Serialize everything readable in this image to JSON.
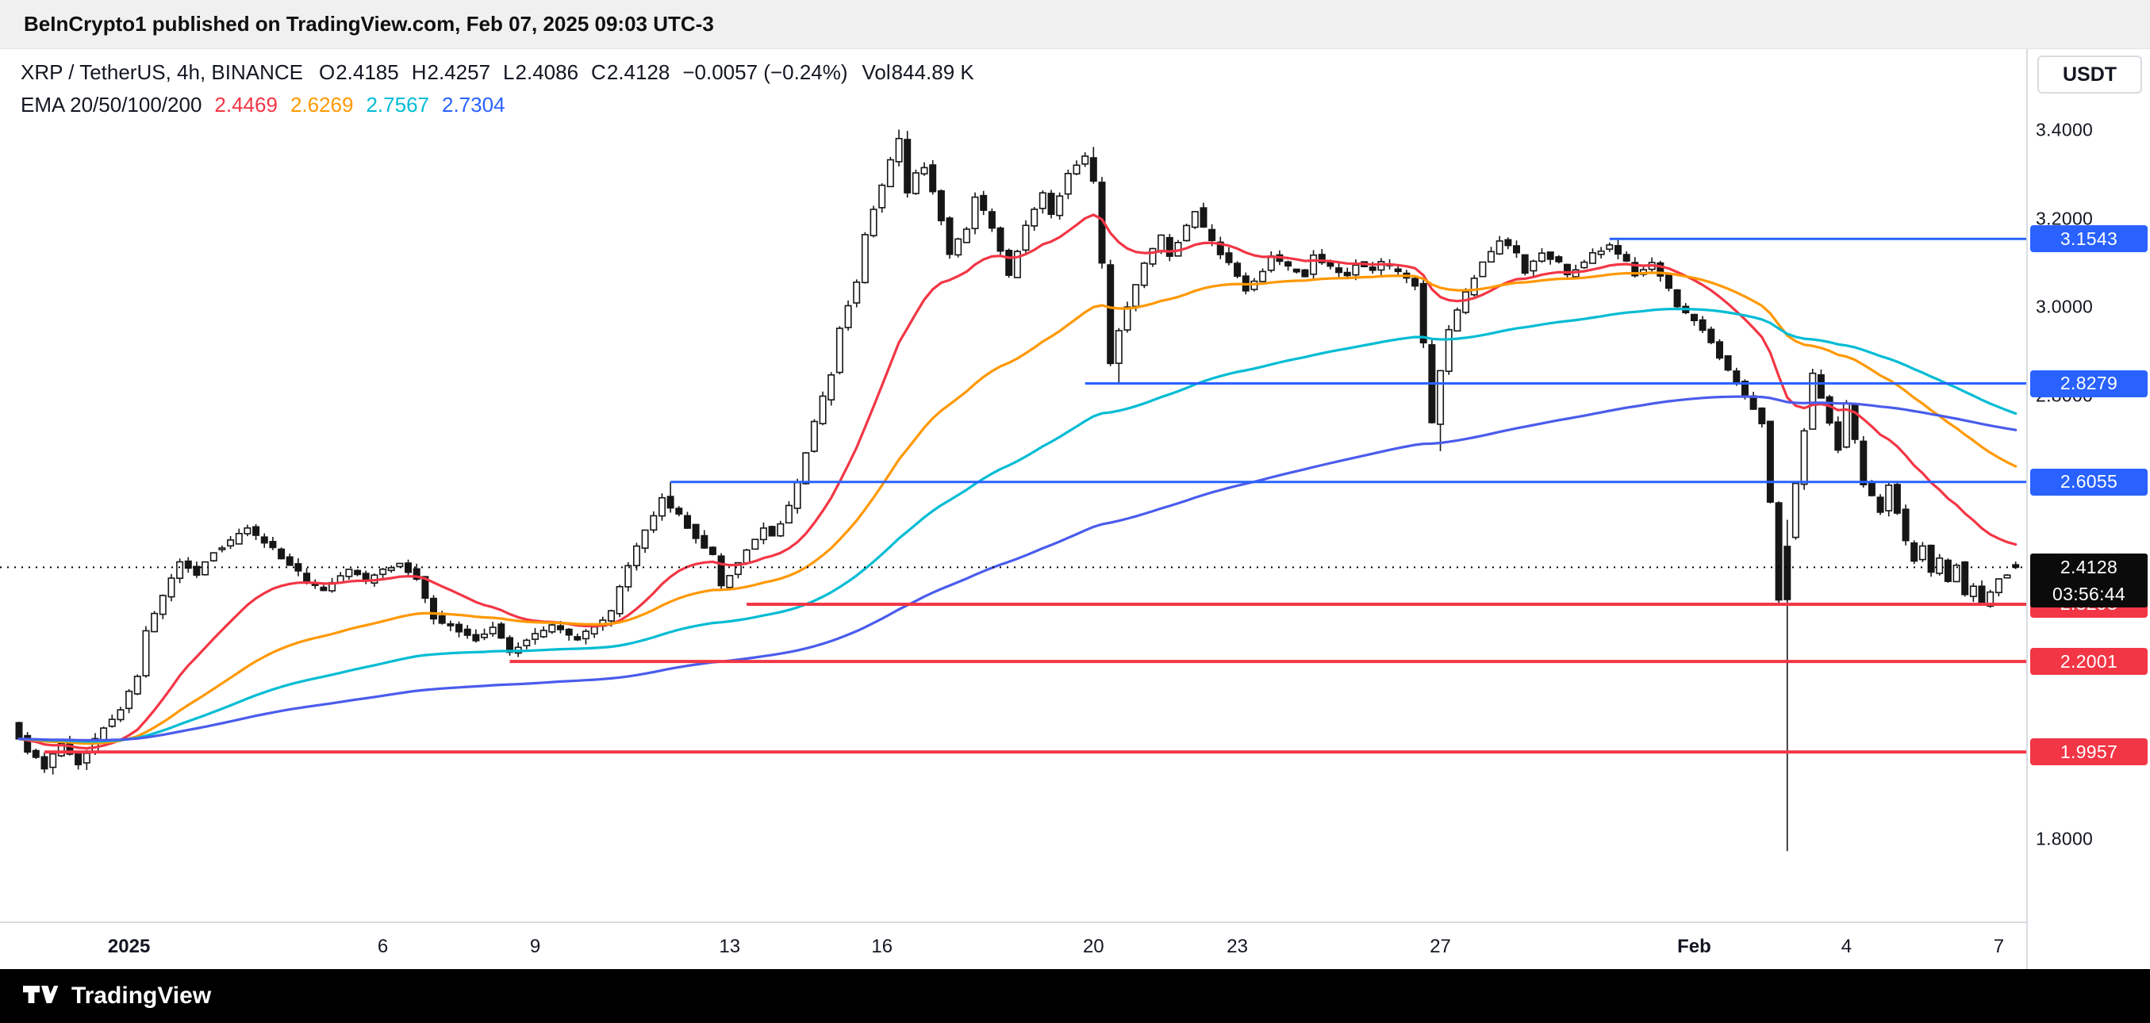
{
  "publish_bar": {
    "text": "BeInCrypto1 published on TradingView.com, Feb 07, 2025 09:03 UTC-3"
  },
  "legend": {
    "symbol": "XRP / TetherUS, 4h, BINANCE",
    "ohlc": [
      {
        "label": "O",
        "value": "2.4185"
      },
      {
        "label": "H",
        "value": "2.4257"
      },
      {
        "label": "L",
        "value": "2.4086"
      },
      {
        "label": "C",
        "value": "2.4128"
      }
    ],
    "change": "−0.0057 (−0.24%)",
    "volume_label": "Vol",
    "volume": "844.89 K",
    "ema_label": "EMA 20/50/100/200",
    "ema_values": [
      {
        "value": "2.4469",
        "color": "#f23645"
      },
      {
        "value": "2.6269",
        "color": "#ff9800"
      },
      {
        "value": "2.7567",
        "color": "#00bcd4"
      },
      {
        "value": "2.7304",
        "color": "#2962ff"
      }
    ]
  },
  "price_axis": {
    "currency_button": "USDT"
  },
  "footer": {
    "brand": "TradingView"
  },
  "chart_data": {
    "type": "candlestick",
    "symbol": "XRP/USDT",
    "interval": "4h",
    "exchange": "BINANCE",
    "ylim": [
      1.75,
      3.47
    ],
    "candle_count": 237,
    "up_color": "#ffffff",
    "down_color": "#161616",
    "border_color": "#161616",
    "y_axis_labels": [
      {
        "price": 3.4,
        "label": "3.4000"
      },
      {
        "price": 3.2,
        "label": "3.2000"
      },
      {
        "price": 3.0,
        "label": "3.0000"
      },
      {
        "price": 2.8,
        "label": "2.8000"
      },
      {
        "price": 1.8,
        "label": "1.8000"
      }
    ],
    "time_ticks": [
      {
        "t": 13,
        "label": "2025",
        "bold": true
      },
      {
        "t": 43,
        "label": "6",
        "bold": false
      },
      {
        "t": 61,
        "label": "9",
        "bold": false
      },
      {
        "t": 84,
        "label": "13",
        "bold": false
      },
      {
        "t": 102,
        "label": "16",
        "bold": false
      },
      {
        "t": 127,
        "label": "20",
        "bold": false
      },
      {
        "t": 144,
        "label": "23",
        "bold": false
      },
      {
        "t": 168,
        "label": "27",
        "bold": false
      },
      {
        "t": 198,
        "label": "Feb",
        "bold": true
      },
      {
        "t": 216,
        "label": "4",
        "bold": false
      },
      {
        "t": 234,
        "label": "7",
        "bold": false
      }
    ],
    "levels": [
      {
        "price": 3.1543,
        "label": "3.1543",
        "color": "#2962ff",
        "start_t": 188,
        "width": 3
      },
      {
        "price": 2.8279,
        "label": "2.8279",
        "color": "#2962ff",
        "start_t": 126,
        "width": 3
      },
      {
        "price": 2.6055,
        "label": "2.6055",
        "color": "#2962ff",
        "start_t": 77,
        "width": 3
      },
      {
        "price": 2.3293,
        "label": "2.3293",
        "color": "#f23645",
        "start_t": 86,
        "width": 4
      },
      {
        "price": 2.2001,
        "label": "2.2001",
        "color": "#f23645",
        "start_t": 58,
        "width": 4
      },
      {
        "price": 1.9957,
        "label": "1.9957",
        "color": "#f23645",
        "start_t": 3,
        "width": 4
      }
    ],
    "current_price": {
      "price": 2.4128,
      "label": "2.4128",
      "countdown": "03:56:44"
    },
    "emas": [
      {
        "period": 20,
        "color": "#f23645"
      },
      {
        "period": 50,
        "color": "#ff9800"
      },
      {
        "period": 100,
        "color": "#00bcd4"
      },
      {
        "period": 200,
        "color": "#4a5cec"
      }
    ],
    "path_anchors": [
      [
        0,
        2.06
      ],
      [
        2,
        2.0
      ],
      [
        4,
        1.96
      ],
      [
        6,
        2.02
      ],
      [
        8,
        1.97
      ],
      [
        11,
        2.05
      ],
      [
        13,
        2.09
      ],
      [
        15,
        2.17
      ],
      [
        16,
        2.27
      ],
      [
        18,
        2.35
      ],
      [
        20,
        2.43
      ],
      [
        22,
        2.4
      ],
      [
        24,
        2.45
      ],
      [
        26,
        2.47
      ],
      [
        28,
        2.5
      ],
      [
        30,
        2.47
      ],
      [
        33,
        2.42
      ],
      [
        35,
        2.38
      ],
      [
        37,
        2.36
      ],
      [
        40,
        2.41
      ],
      [
        42,
        2.38
      ],
      [
        44,
        2.41
      ],
      [
        46,
        2.42
      ],
      [
        48,
        2.39
      ],
      [
        50,
        2.3
      ],
      [
        52,
        2.28
      ],
      [
        55,
        2.25
      ],
      [
        57,
        2.28
      ],
      [
        59,
        2.22
      ],
      [
        62,
        2.26
      ],
      [
        64,
        2.28
      ],
      [
        67,
        2.25
      ],
      [
        69,
        2.28
      ],
      [
        71,
        2.31
      ],
      [
        73,
        2.42
      ],
      [
        76,
        2.53
      ],
      [
        77,
        2.57
      ],
      [
        79,
        2.53
      ],
      [
        81,
        2.48
      ],
      [
        83,
        2.44
      ],
      [
        84,
        2.37
      ],
      [
        87,
        2.45
      ],
      [
        89,
        2.5
      ],
      [
        90,
        2.48
      ],
      [
        92,
        2.55
      ],
      [
        93,
        2.6
      ],
      [
        95,
        2.74
      ],
      [
        97,
        2.85
      ],
      [
        98,
        2.95
      ],
      [
        100,
        3.06
      ],
      [
        101,
        3.16
      ],
      [
        102,
        3.22
      ],
      [
        104,
        3.33
      ],
      [
        105,
        3.38
      ],
      [
        106,
        3.26
      ],
      [
        107,
        3.3
      ],
      [
        108,
        3.32
      ],
      [
        110,
        3.2
      ],
      [
        111,
        3.12
      ],
      [
        113,
        3.18
      ],
      [
        114,
        3.25
      ],
      [
        116,
        3.18
      ],
      [
        118,
        3.07
      ],
      [
        120,
        3.18
      ],
      [
        122,
        3.26
      ],
      [
        123,
        3.21
      ],
      [
        125,
        3.3
      ],
      [
        127,
        3.34
      ],
      [
        128,
        3.28
      ],
      [
        129,
        3.1
      ],
      [
        130,
        2.87
      ],
      [
        131,
        2.95
      ],
      [
        133,
        3.05
      ],
      [
        134,
        3.1
      ],
      [
        136,
        3.16
      ],
      [
        137,
        3.12
      ],
      [
        139,
        3.18
      ],
      [
        140,
        3.22
      ],
      [
        141,
        3.18
      ],
      [
        143,
        3.12
      ],
      [
        144,
        3.1
      ],
      [
        146,
        3.04
      ],
      [
        148,
        3.08
      ],
      [
        149,
        3.12
      ],
      [
        151,
        3.09
      ],
      [
        153,
        3.07
      ],
      [
        154,
        3.12
      ],
      [
        156,
        3.09
      ],
      [
        158,
        3.07
      ],
      [
        159,
        3.1
      ],
      [
        161,
        3.08
      ],
      [
        162,
        3.1
      ],
      [
        164,
        3.08
      ],
      [
        166,
        3.05
      ],
      [
        167,
        2.92
      ],
      [
        168,
        2.74
      ],
      [
        169,
        2.86
      ],
      [
        170,
        2.95
      ],
      [
        172,
        3.03
      ],
      [
        174,
        3.1
      ],
      [
        176,
        3.15
      ],
      [
        178,
        3.12
      ],
      [
        179,
        3.08
      ],
      [
        181,
        3.12
      ],
      [
        183,
        3.1
      ],
      [
        184,
        3.07
      ],
      [
        186,
        3.1
      ],
      [
        187,
        3.12
      ],
      [
        189,
        3.14
      ],
      [
        191,
        3.1
      ],
      [
        192,
        3.07
      ],
      [
        194,
        3.1
      ],
      [
        196,
        3.04
      ],
      [
        197,
        3.0
      ],
      [
        199,
        2.97
      ],
      [
        200,
        2.95
      ],
      [
        202,
        2.89
      ],
      [
        204,
        2.83
      ],
      [
        205,
        2.8
      ],
      [
        207,
        2.74
      ],
      [
        208,
        2.56
      ],
      [
        209,
        2.34
      ],
      [
        210,
        2.48
      ],
      [
        211,
        2.6
      ],
      [
        212,
        2.72
      ],
      [
        213,
        2.85
      ],
      [
        215,
        2.74
      ],
      [
        216,
        2.68
      ],
      [
        217,
        2.78
      ],
      [
        218,
        2.7
      ],
      [
        219,
        2.6
      ],
      [
        221,
        2.54
      ],
      [
        222,
        2.6
      ],
      [
        223,
        2.54
      ],
      [
        224,
        2.47
      ],
      [
        225,
        2.43
      ],
      [
        226,
        2.46
      ],
      [
        227,
        2.4
      ],
      [
        228,
        2.43
      ],
      [
        229,
        2.38
      ],
      [
        230,
        2.42
      ],
      [
        231,
        2.35
      ],
      [
        232,
        2.37
      ],
      [
        233,
        2.33
      ],
      [
        234,
        2.36
      ],
      [
        235,
        2.39
      ],
      [
        236,
        2.4
      ],
      [
        237,
        2.413
      ]
    ],
    "overrides": [
      {
        "t": 4,
        "l": 1.945
      },
      {
        "t": 8,
        "l": 1.955
      },
      {
        "t": 77,
        "h": 2.6055
      },
      {
        "t": 104,
        "h": 3.401
      },
      {
        "t": 105,
        "h": 3.398
      },
      {
        "t": 127,
        "h": 3.362
      },
      {
        "t": 130,
        "l": 2.828
      },
      {
        "t": 168,
        "l": 2.675
      },
      {
        "t": 189,
        "h": 3.1543
      },
      {
        "t": 209,
        "o": 2.46,
        "h": 2.52,
        "l": 1.772,
        "c": 2.34
      },
      {
        "t": 236,
        "o": 2.4185,
        "h": 2.4257,
        "l": 2.4086,
        "c": 2.4128
      }
    ]
  }
}
